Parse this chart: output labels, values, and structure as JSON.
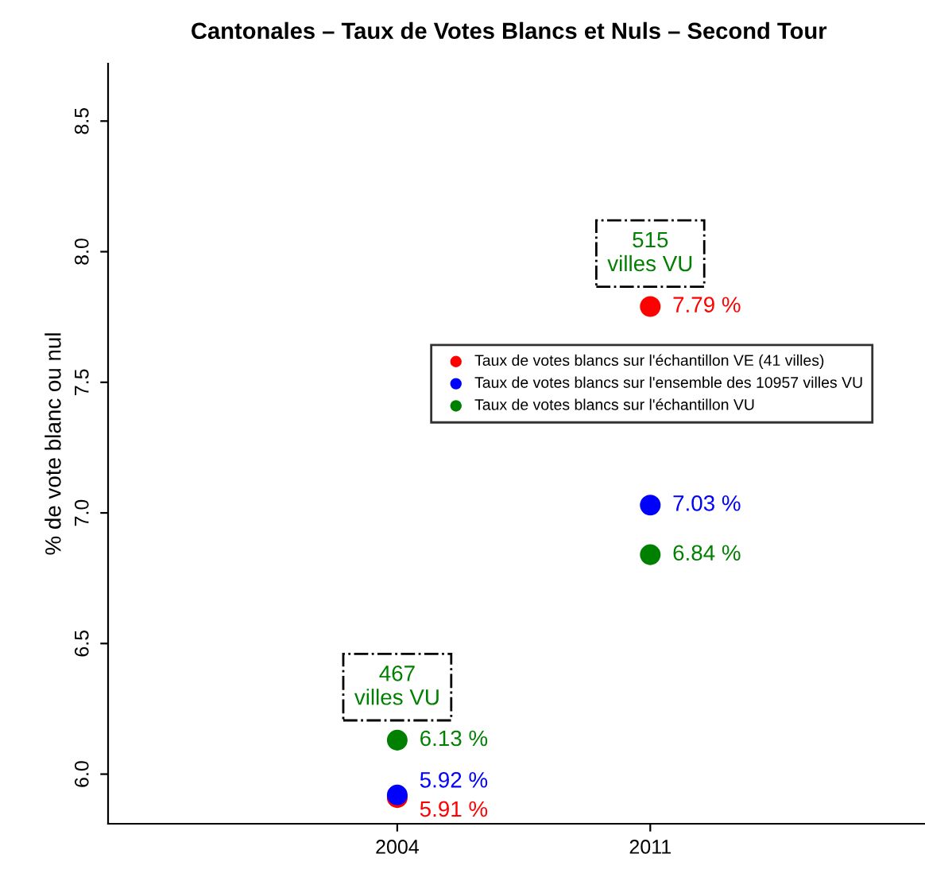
{
  "chart_data": {
    "type": "scatter",
    "title": "Cantonales – Taux de Votes Blancs et Nuls – Second Tour",
    "ylabel": "% de vote blanc ou nul",
    "x": [
      2004,
      2011
    ],
    "series": [
      {
        "name": "Taux de votes blancs sur l'échantillon VE (41 villes)",
        "color": "#ff0000",
        "values": [
          5.91,
          7.79
        ],
        "value_labels": [
          "5.91 %",
          "7.79 %"
        ]
      },
      {
        "name": "Taux de votes blancs sur l'ensemble des 10957 villes VU",
        "color": "#0000ff",
        "values": [
          5.92,
          7.03
        ],
        "value_labels": [
          "5.92 %",
          "7.03 %"
        ]
      },
      {
        "name": "Taux de votes blancs sur l'échantillon VU",
        "color": "#008000",
        "values": [
          6.13,
          6.84
        ],
        "value_labels": [
          "6.13 %",
          "6.84 %"
        ]
      }
    ],
    "annotations": [
      "467\nvilles VU",
      "515\nvilles VU"
    ],
    "xlim": [
      1996,
      2018.6
    ],
    "xticks": [
      2004,
      2011
    ],
    "ylim": [
      5.81,
      8.72
    ],
    "yticks": [
      {
        "value": 6,
        "label": "6.0"
      },
      6.5,
      {
        "value": 7,
        "label": "7.0"
      },
      7.5,
      {
        "value": 8,
        "label": "8.0"
      },
      8.5
    ],
    "marker": "circle",
    "legend": "right",
    "grid": false
  }
}
